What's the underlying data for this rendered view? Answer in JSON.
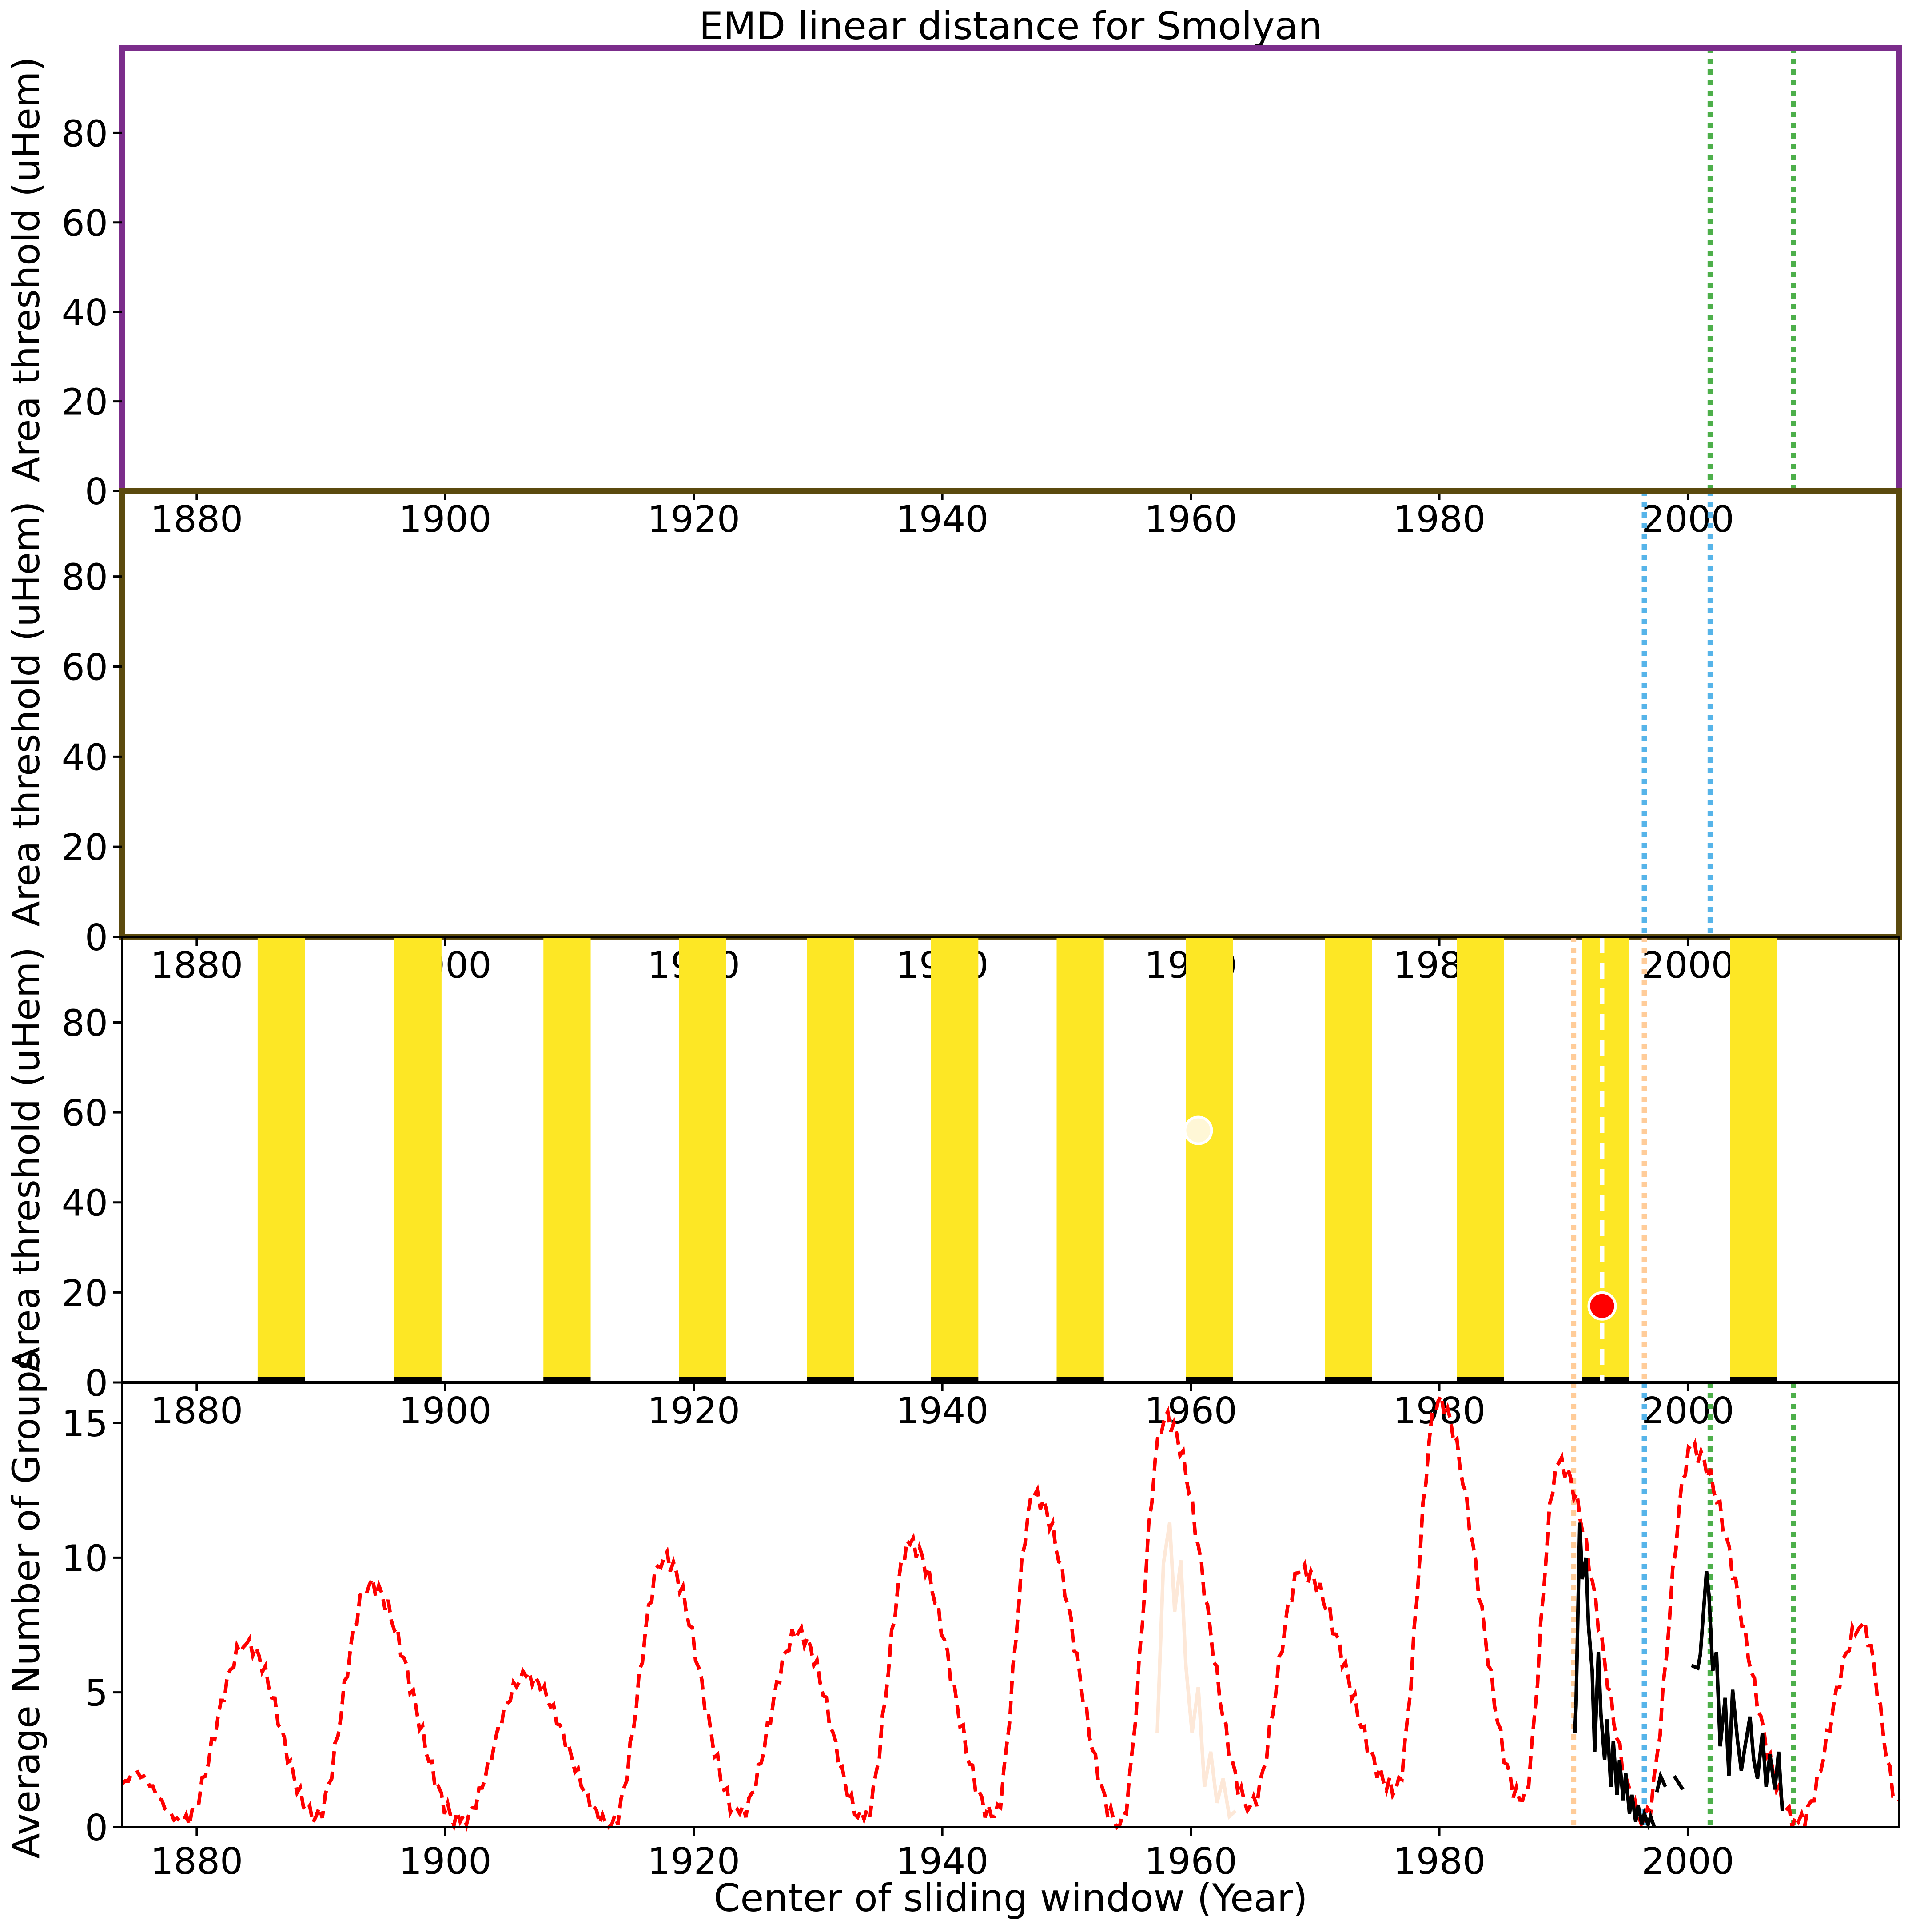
{
  "title": "EMD linear distance for Smolyan",
  "colors": {
    "panel1_border": "#7b2d8b",
    "panel2_border": "#5b4a0e",
    "panel3_border": "#000000",
    "band_yellow": "#fde725",
    "green_line": "#4daf4a",
    "blue_line": "#56b4e9",
    "orange_line": "#ffcc99",
    "red_series": "#ff0000",
    "black_series": "#000000",
    "faint_series": "#fde8d8",
    "red_marker": "#ff0000",
    "light_marker": "#fff7d6"
  },
  "chart_data": [
    {
      "type": "heatmap",
      "panel": "top",
      "xlim": [
        1874,
        2017
      ],
      "ylim": [
        0,
        99
      ],
      "yticks": [
        0,
        20,
        40,
        60,
        80
      ],
      "xticks": [
        1880,
        1900,
        1920,
        1940,
        1960,
        1980,
        2000
      ],
      "ylabel": "Area threshold (uHem)",
      "vlines": [
        {
          "x": 2001.8,
          "style": "dotted",
          "color": "green"
        },
        {
          "x": 2008.5,
          "style": "dotted",
          "color": "green"
        }
      ]
    },
    {
      "type": "heatmap",
      "panel": "second",
      "xlim": [
        1874,
        2017
      ],
      "ylim": [
        0,
        99
      ],
      "yticks": [
        0,
        20,
        40,
        60,
        80
      ],
      "xticks": [
        1880,
        1900,
        1920,
        1940,
        1960,
        1980,
        2000
      ],
      "ylabel": "Area threshold (uHem)",
      "vlines": [
        {
          "x": 1996.5,
          "style": "dotted",
          "color": "blue"
        },
        {
          "x": 2001.8,
          "style": "dotted",
          "color": "blue"
        }
      ]
    },
    {
      "type": "heatmap",
      "panel": "third",
      "xlim": [
        1874,
        2017
      ],
      "ylim": [
        0,
        99
      ],
      "yticks": [
        0,
        20,
        40,
        60,
        80
      ],
      "xticks": [
        1880,
        1900,
        1920,
        1940,
        1960,
        1980,
        2000
      ],
      "ylabel": "Area threshold (uHem)",
      "bands": [
        [
          1884.9,
          1888.7
        ],
        [
          1895.9,
          1899.7
        ],
        [
          1907.9,
          1911.7
        ],
        [
          1918.8,
          1922.6
        ],
        [
          1929.1,
          1932.9
        ],
        [
          1939.1,
          1942.9
        ],
        [
          1949.2,
          1953.0
        ],
        [
          1959.6,
          1963.4
        ],
        [
          1970.8,
          1974.6
        ],
        [
          1981.4,
          1985.2
        ],
        [
          1991.5,
          1995.3
        ],
        [
          2003.4,
          2007.2
        ]
      ],
      "vlines": [
        {
          "x": 1990.8,
          "style": "dotted",
          "color": "orange"
        },
        {
          "x": 1996.5,
          "style": "dotted",
          "color": "orange"
        },
        {
          "x": 1993.1,
          "style": "dashed",
          "color": "white"
        }
      ],
      "markers": [
        {
          "x": 1993.1,
          "y": 17,
          "color": "red"
        },
        {
          "x": 1960.6,
          "y": 56,
          "color": "light"
        }
      ]
    },
    {
      "type": "line",
      "panel": "bottom",
      "xlim": [
        1874,
        2017
      ],
      "ylim": [
        0,
        16.5
      ],
      "yticks": [
        0,
        5,
        10,
        15
      ],
      "xticks": [
        1880,
        1900,
        1920,
        1940,
        1960,
        1980,
        2000
      ],
      "xlabel": "Center of sliding window (Year)",
      "ylabel": "Average Number of Groups",
      "vlines": [
        {
          "x": 1990.8,
          "style": "dotted",
          "color": "orange"
        },
        {
          "x": 1996.5,
          "style": "dotted",
          "color": "blue"
        },
        {
          "x": 2001.8,
          "style": "dotted",
          "color": "green"
        },
        {
          "x": 2008.5,
          "style": "dotted",
          "color": "green"
        }
      ],
      "cycles": [
        {
          "min": 1878.9,
          "max": 1884.0,
          "minv": 0.2,
          "maxv": 6.8
        },
        {
          "min": 1889.6,
          "max": 1893.9,
          "minv": 0.4,
          "maxv": 9.0
        },
        {
          "min": 1901.2,
          "max": 1906.5,
          "minv": 0.2,
          "maxv": 5.6
        },
        {
          "min": 1913.4,
          "max": 1917.6,
          "minv": 0.1,
          "maxv": 10.0
        },
        {
          "min": 1923.7,
          "max": 1928.4,
          "minv": 0.5,
          "maxv": 7.2
        },
        {
          "min": 1933.7,
          "max": 1937.4,
          "minv": 0.3,
          "maxv": 10.5
        },
        {
          "min": 1944.2,
          "max": 1947.4,
          "minv": 0.4,
          "maxv": 12.3
        },
        {
          "min": 1954.3,
          "max": 1957.9,
          "minv": 0.1,
          "maxv": 15.2
        },
        {
          "min": 1964.8,
          "max": 1968.9,
          "minv": 0.8,
          "maxv": 9.5
        },
        {
          "min": 1976.5,
          "max": 1979.9,
          "minv": 1.4,
          "maxv": 15.8
        },
        {
          "min": 1986.7,
          "max": 1989.6,
          "minv": 1.0,
          "maxv": 13.5
        },
        {
          "min": 1996.5,
          "max": 2000.3,
          "minv": 0.3,
          "maxv": 14.0
        },
        {
          "min": 2008.9,
          "max": 2014.0,
          "minv": 0.2,
          "maxv": 7.5
        }
      ],
      "black_segments": [
        {
          "x": [
            1990.9,
            1991.0,
            1991.3,
            1991.5,
            1991.8,
            1992.0,
            1992.3,
            1992.5,
            1992.8,
            1993.0,
            1993.3,
            1993.5,
            1993.8,
            1994.0,
            1994.3,
            1994.5,
            1994.8,
            1995.0,
            1995.3,
            1995.5,
            1995.8,
            1996.0,
            1996.3,
            1996.5,
            1996.8,
            1997.0,
            1997.3
          ],
          "y": [
            3.5,
            4.5,
            11.3,
            9.2,
            10.0,
            7.5,
            5.8,
            2.8,
            6.5,
            4.2,
            2.5,
            4.0,
            1.5,
            3.2,
            1.2,
            2.5,
            1.0,
            2.0,
            0.5,
            1.2,
            0.2,
            0.8,
            0.1,
            0.5,
            0.1,
            0.4,
            0.0
          ]
        },
        {
          "x": [
            1997.5,
            1997.8,
            1998.2
          ],
          "y": [
            1.3,
            1.9,
            1.5
          ]
        },
        {
          "x": [
            1998.9,
            1999.6
          ],
          "y": [
            1.9,
            1.4
          ]
        },
        {
          "x": [
            2000.3,
            2000.8,
            2001.0,
            2001.5,
            2001.7,
            2002.0,
            2002.3,
            2002.6,
            2003.0,
            2003.3,
            2003.6,
            2004.0,
            2004.3,
            2004.6,
            2005.0,
            2005.3,
            2005.6,
            2006.0,
            2006.3,
            2006.6,
            2007.0,
            2007.3,
            2007.6
          ],
          "y": [
            6.0,
            5.9,
            6.4,
            9.5,
            8.6,
            5.8,
            6.5,
            3.0,
            4.8,
            1.9,
            5.1,
            3.2,
            2.1,
            3.0,
            4.1,
            2.5,
            1.8,
            3.5,
            1.5,
            2.7,
            1.4,
            2.8,
            0.6
          ]
        }
      ],
      "faint_segment": {
        "x": [
          1957.3,
          1957.8,
          1958.3,
          1958.7,
          1959.2,
          1959.6,
          1960.1,
          1960.6,
          1961.1,
          1961.6,
          1962.1,
          1962.6,
          1963.1,
          1963.6
        ],
        "y": [
          3.5,
          9.8,
          11.3,
          8.0,
          9.9,
          6.0,
          3.5,
          5.2,
          1.5,
          2.8,
          0.9,
          1.8,
          0.4,
          0.6
        ]
      }
    }
  ]
}
